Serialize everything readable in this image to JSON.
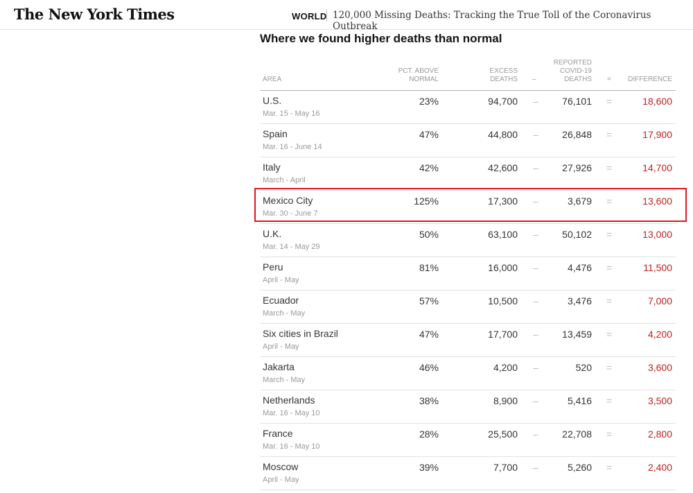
{
  "header": {
    "logo": "The New York Times",
    "section": "WORLD",
    "headline": "120,000 Missing Deaths: Tracking the True Toll of the Coronavirus Outbreak"
  },
  "table": {
    "title": "Where we found higher deaths than normal",
    "columns": {
      "area": "AREA",
      "pct_line1": "PCT. ABOVE",
      "pct_line2": "NORMAL",
      "excess_line1": "EXCESS",
      "excess_line2": "DEATHS",
      "minus": "–",
      "reported_line1": "REPORTED",
      "reported_line2": "COVID-19",
      "reported_line3": "DEATHS",
      "equals": "=",
      "difference": "DIFFERENCE"
    },
    "operators": {
      "minus": "–",
      "equals": "="
    },
    "highlight_color": "#e3141b",
    "difference_color": "#c41d1d",
    "rows": [
      {
        "area": "U.S.",
        "dates": "Mar. 15 - May 16",
        "pct": "23%",
        "excess": "94,700",
        "reported": "76,101",
        "difference": "18,600"
      },
      {
        "area": "Spain",
        "dates": "Mar. 16 - June 14",
        "pct": "47%",
        "excess": "44,800",
        "reported": "26,848",
        "difference": "17,900"
      },
      {
        "area": "Italy",
        "dates": "March - April",
        "pct": "42%",
        "excess": "42,600",
        "reported": "27,926",
        "difference": "14,700"
      },
      {
        "area": "Mexico City",
        "dates": "Mar. 30 - June 7",
        "pct": "125%",
        "excess": "17,300",
        "reported": "3,679",
        "difference": "13,600"
      },
      {
        "area": "U.K.",
        "dates": "Mar. 14 - May 29",
        "pct": "50%",
        "excess": "63,100",
        "reported": "50,102",
        "difference": "13,000"
      },
      {
        "area": "Peru",
        "dates": "April - May",
        "pct": "81%",
        "excess": "16,000",
        "reported": "4,476",
        "difference": "11,500"
      },
      {
        "area": "Ecuador",
        "dates": "March - May",
        "pct": "57%",
        "excess": "10,500",
        "reported": "3,476",
        "difference": "7,000"
      },
      {
        "area": "Six cities in Brazil",
        "dates": "April - May",
        "pct": "47%",
        "excess": "17,700",
        "reported": "13,459",
        "difference": "4,200"
      },
      {
        "area": "Jakarta",
        "dates": "March - May",
        "pct": "46%",
        "excess": "4,200",
        "reported": "520",
        "difference": "3,600"
      },
      {
        "area": "Netherlands",
        "dates": "Mar. 16 - May 10",
        "pct": "38%",
        "excess": "8,900",
        "reported": "5,416",
        "difference": "3,500"
      },
      {
        "area": "France",
        "dates": "Mar. 16 - May 10",
        "pct": "28%",
        "excess": "25,500",
        "reported": "22,708",
        "difference": "2,800"
      },
      {
        "area": "Moscow",
        "dates": "April - May",
        "pct": "39%",
        "excess": "7,700",
        "reported": "5,260",
        "difference": "2,400"
      }
    ]
  }
}
